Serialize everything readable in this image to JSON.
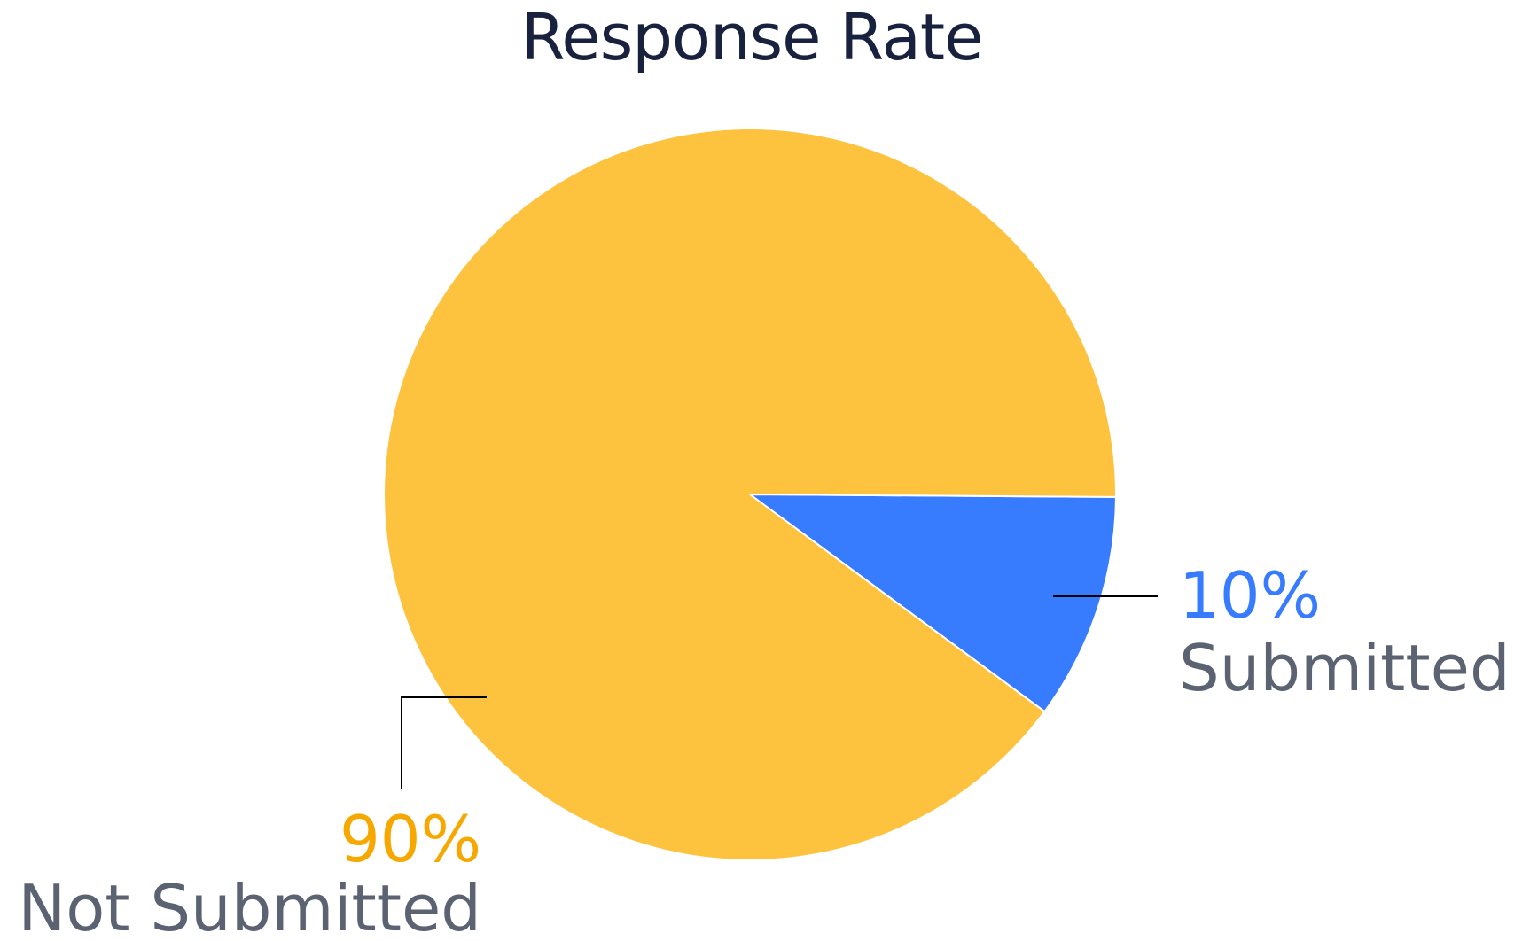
{
  "chart_data": {
    "type": "pie",
    "title": "Response Rate",
    "slices": [
      {
        "label": "Not Submitted",
        "value": 90,
        "value_label": "90%",
        "color": "#fdc33f",
        "label_color": "#f6a800"
      },
      {
        "label": "Submitted",
        "value": 10,
        "value_label": "10%",
        "color": "#377bff",
        "label_color": "#377bff"
      }
    ],
    "name_label_color": "#5b6272",
    "leader_line_color": "#000000"
  }
}
